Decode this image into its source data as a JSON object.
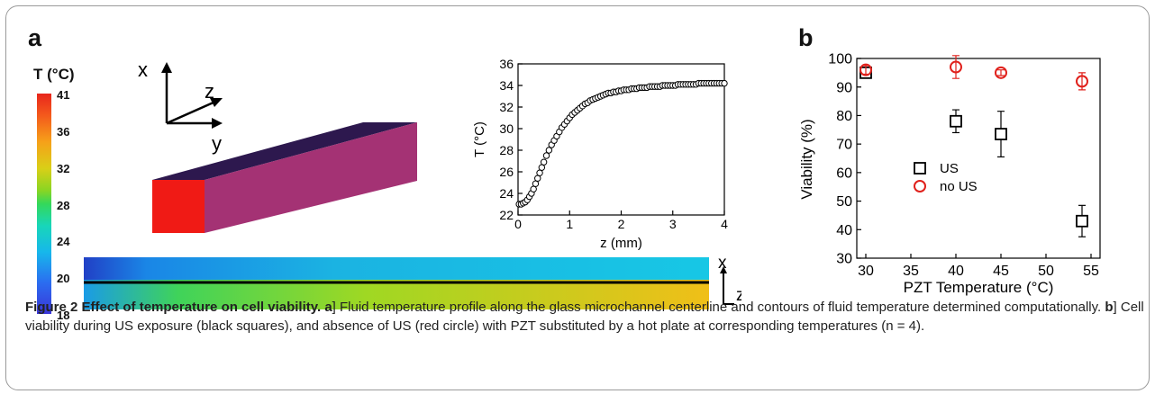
{
  "panel_labels": {
    "a": "a",
    "b": "b"
  },
  "colorbar": {
    "title": "T (°C)",
    "ticks": [
      "41",
      "36",
      "32",
      "28",
      "24",
      "20",
      "18"
    ]
  },
  "axes_3d": {
    "x": "x",
    "y": "y",
    "z": "z"
  },
  "contour_axes": {
    "x": "x",
    "z": "z"
  },
  "caption": {
    "figure_label": "Figure 2",
    "title": "Effect of temperature on cell viability.",
    "panel_a_label": "a",
    "panel_a_text": "] Fluid temperature profile along the glass microchannel centerline and contours of fluid temperature determined computationally.",
    "panel_b_label": "b",
    "panel_b_text": "] Cell viability during US exposure (black squares), and absence of US (red circle) with PZT substituted by a hot plate at corresponding temperatures (n = 4)."
  },
  "chart_data": [
    {
      "type": "scatter",
      "xlabel": "z (mm)",
      "ylabel": "T (°C)",
      "xlim": [
        0,
        4
      ],
      "ylim": [
        22,
        36
      ],
      "xticks": [
        "0",
        "1",
        "2",
        "3",
        "4"
      ],
      "yticks": [
        "22",
        "24",
        "26",
        "28",
        "30",
        "32",
        "34",
        "36"
      ],
      "marker": "open-circle",
      "x": [
        0.02,
        0.06,
        0.1,
        0.14,
        0.18,
        0.22,
        0.26,
        0.3,
        0.34,
        0.38,
        0.42,
        0.46,
        0.5,
        0.55,
        0.6,
        0.65,
        0.7,
        0.75,
        0.8,
        0.85,
        0.9,
        0.95,
        1.0,
        1.05,
        1.1,
        1.15,
        1.2,
        1.25,
        1.3,
        1.35,
        1.4,
        1.45,
        1.5,
        1.55,
        1.6,
        1.65,
        1.7,
        1.75,
        1.8,
        1.85,
        1.9,
        1.95,
        2.0,
        2.05,
        2.1,
        2.15,
        2.2,
        2.25,
        2.3,
        2.35,
        2.4,
        2.45,
        2.5,
        2.55,
        2.6,
        2.65,
        2.7,
        2.75,
        2.8,
        2.85,
        2.9,
        2.95,
        3.0,
        3.05,
        3.1,
        3.15,
        3.2,
        3.25,
        3.3,
        3.35,
        3.4,
        3.45,
        3.5,
        3.55,
        3.6,
        3.65,
        3.7,
        3.75,
        3.8,
        3.85,
        3.9,
        3.95,
        4.0
      ],
      "y": [
        23.0,
        23.0,
        23.1,
        23.2,
        23.4,
        23.7,
        24.0,
        24.4,
        24.9,
        25.4,
        25.9,
        26.4,
        26.9,
        27.5,
        28.0,
        28.5,
        28.9,
        29.3,
        29.7,
        30.1,
        30.4,
        30.7,
        31.0,
        31.3,
        31.5,
        31.7,
        31.9,
        32.1,
        32.3,
        32.4,
        32.6,
        32.7,
        32.8,
        32.9,
        33.0,
        33.1,
        33.2,
        33.3,
        33.3,
        33.4,
        33.4,
        33.5,
        33.5,
        33.6,
        33.6,
        33.6,
        33.7,
        33.7,
        33.7,
        33.8,
        33.8,
        33.8,
        33.8,
        33.9,
        33.9,
        33.9,
        33.9,
        33.9,
        34.0,
        34.0,
        34.0,
        34.0,
        34.0,
        34.0,
        34.1,
        34.1,
        34.1,
        34.1,
        34.1,
        34.1,
        34.1,
        34.1,
        34.2,
        34.2,
        34.2,
        34.2,
        34.2,
        34.2,
        34.2,
        34.2,
        34.2,
        34.2,
        34.2
      ]
    },
    {
      "type": "scatter",
      "xlabel": "PZT Temperature (°C)",
      "ylabel": "Viability (%)",
      "xlim": [
        29,
        56
      ],
      "ylim": [
        30,
        100
      ],
      "xticks": [
        "30",
        "35",
        "40",
        "45",
        "50",
        "55"
      ],
      "yticks": [
        "30",
        "40",
        "50",
        "60",
        "70",
        "80",
        "90",
        "100"
      ],
      "legend_position": "center-left",
      "series": [
        {
          "name": "US",
          "marker": "open-square",
          "color": "#000000",
          "x": [
            30,
            40,
            45,
            54
          ],
          "y": [
            95,
            78,
            73.5,
            43
          ],
          "yerr": [
            1.5,
            4,
            8,
            5.5
          ]
        },
        {
          "name": "no US",
          "marker": "open-circle",
          "color": "#e0201b",
          "x": [
            30,
            40,
            45,
            54
          ],
          "y": [
            96,
            97,
            95,
            92
          ],
          "yerr": [
            1.5,
            4,
            1,
            3
          ]
        }
      ]
    }
  ]
}
